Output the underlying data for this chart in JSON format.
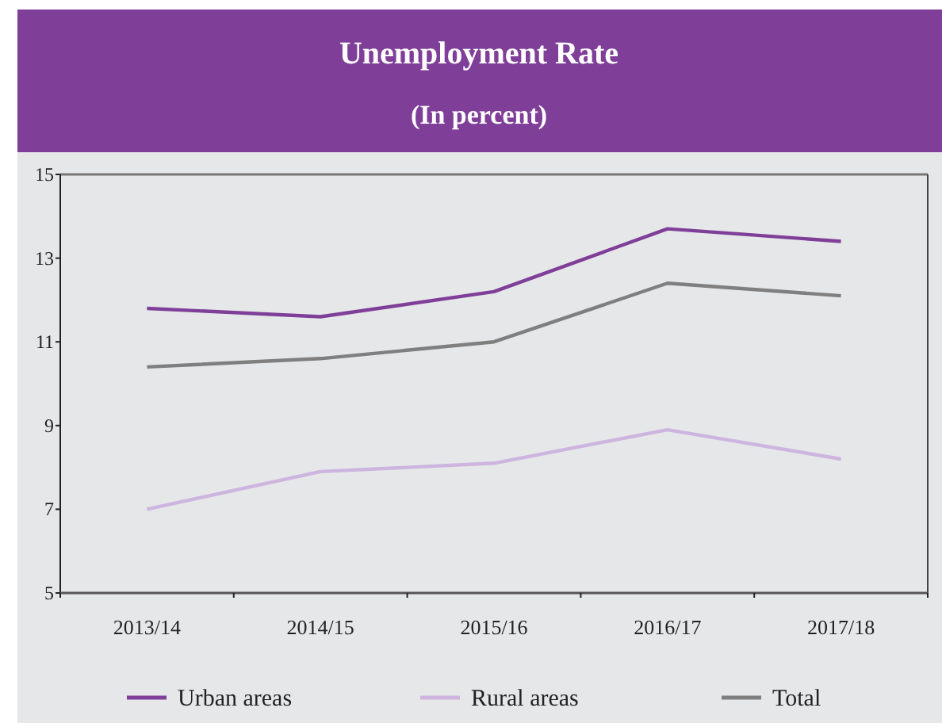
{
  "chart_data": {
    "type": "line",
    "title": "Unemployment Rate",
    "subtitle": "(In percent)",
    "categories": [
      "2013/14",
      "2014/15",
      "2015/16",
      "2016/17",
      "2017/18"
    ],
    "series": [
      {
        "name": "Urban areas",
        "color": "#7f3f98",
        "values": [
          11.8,
          11.6,
          12.2,
          13.7,
          13.4
        ]
      },
      {
        "name": "Rural areas",
        "color": "#cdb5e0",
        "values": [
          7.0,
          7.9,
          8.1,
          8.9,
          8.2
        ]
      },
      {
        "name": "Total",
        "color": "#7f7f7f",
        "values": [
          10.4,
          10.6,
          11.0,
          12.4,
          12.1
        ]
      }
    ],
    "ylim": [
      5,
      15
    ],
    "yticks": [
      5,
      7,
      9,
      11,
      13,
      15
    ],
    "grid": false,
    "legend": "bottom",
    "marker": "none",
    "line_style": "solid"
  }
}
